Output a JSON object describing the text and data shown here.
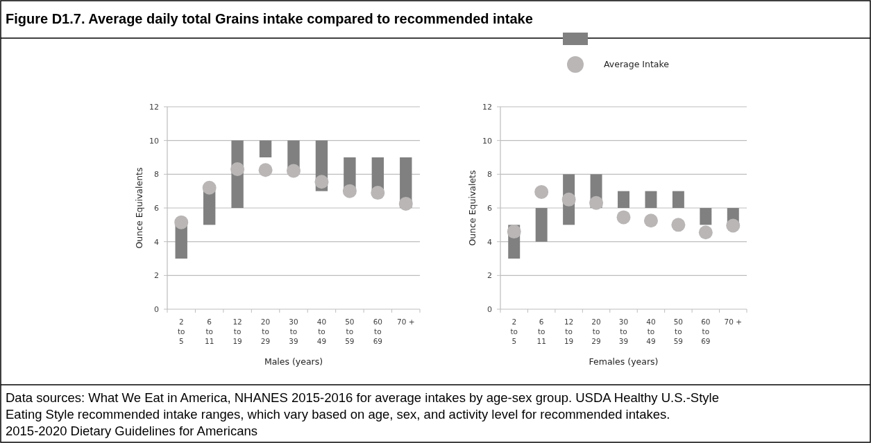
{
  "chart_data": [
    {
      "type": "bar",
      "title": "Figure D1.7. Average daily total Grains intake compared to recommended intake",
      "xlabel": "Males (years)",
      "ylabel": "Ounce Equivalents",
      "categories": [
        "2\nto\n5",
        "6\nto\n11",
        "12\nto\n19",
        "20\nto\n29",
        "30\nto\n39",
        "40\nto\n49",
        "50\nto\n59",
        "60\nto\n69",
        "70 +"
      ],
      "series": [
        {
          "color": "#808080",
          "base": [
            3,
            5,
            6,
            9,
            8,
            7,
            7,
            7,
            6
          ],
          "values": [
            2,
            2,
            4,
            1,
            2,
            3,
            2,
            2,
            3
          ]
        },
        {
          "type": "scatter",
          "color": "#bab6b6",
          "values": [
            5.15,
            7.2,
            8.3,
            8.25,
            8.2,
            7.55,
            7.0,
            6.9,
            6.25
          ]
        }
      ],
      "ylim": [
        0,
        12
      ],
      "yticks": [
        0,
        2,
        4,
        6,
        8,
        10,
        12
      ],
      "grid": "y",
      "marker": "circle",
      "legend": false,
      "annotations": [
        "Data sources: What We Eat in America, NHANES 2015-2016 for average intakes by age-sex group. USDA Healthy U.S.-Style Eating Style recommended intake ranges, which vary based on age, sex, and activity level for recommended intakes. 2015-2020 Dietary Guidelines for Americans"
      ]
    },
    {
      "type": "bar",
      "xlabel": "Females (years)",
      "ylabel": "Ounce Equivalets",
      "categories": [
        "2\nto\n5",
        "6\nto\n11",
        "12\nto\n19",
        "20\nto\n29",
        "30\nto\n39",
        "40\nto\n49",
        "50\nto\n59",
        "60\nto\n69",
        "70 +"
      ],
      "series": [
        {
          "color": "#808080",
          "base": [
            3,
            4,
            5,
            6,
            6,
            6,
            6,
            5,
            5
          ],
          "values": [
            2,
            2,
            3,
            2,
            1,
            1,
            1,
            1,
            1
          ]
        },
        {
          "type": "scatter",
          "name": "Average Intake",
          "color": "#bab6b6",
          "values": [
            4.6,
            6.95,
            6.5,
            6.3,
            5.45,
            5.25,
            5.0,
            4.55,
            4.95
          ]
        }
      ],
      "ylim": [
        0,
        12
      ],
      "yticks": [
        0,
        2,
        4,
        6,
        8,
        10,
        12
      ],
      "grid": "y",
      "marker": "circle",
      "legend": "top"
    }
  ]
}
